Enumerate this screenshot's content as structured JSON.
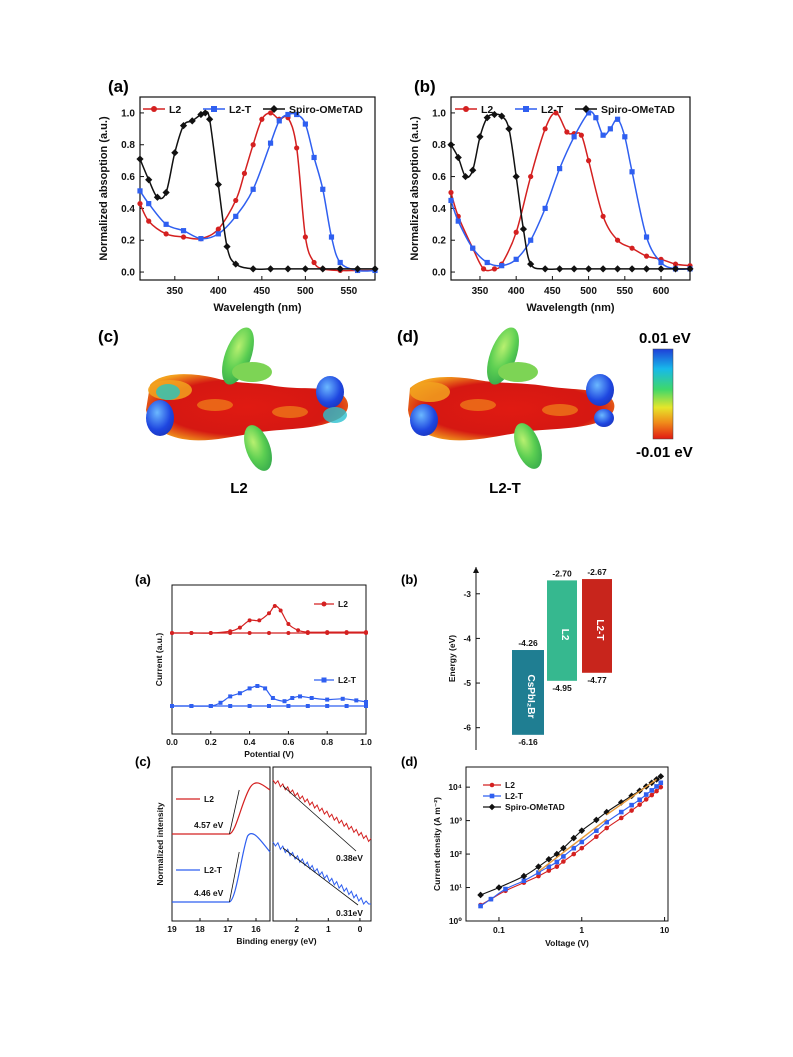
{
  "top_figure": {
    "panel_a_label": "(a)",
    "panel_b_label": "(b)",
    "panel_c_label": "(c)",
    "panel_d_label": "(d)",
    "molecule_left_label": "L2",
    "molecule_right_label": "L2-T",
    "esp_scale_max": "0.01 eV",
    "esp_scale_min": "-0.01 eV"
  },
  "bottom_figure": {
    "panel_a_label": "(a)",
    "panel_b_label": "(b)",
    "panel_c_label": "(c)",
    "panel_d_label": "(d)"
  },
  "colors": {
    "L2": "#d42020",
    "L2-T": "#2f5ff0",
    "Spiro-OMeTAD": "#111111",
    "CsPbI2Br": "#1f7e92",
    "L2_bar": "#36b88f",
    "L2T_bar": "#c8251c"
  },
  "chart_data": [
    {
      "id": "abs_a",
      "type": "line",
      "xlabel": "Wavelength (nm)",
      "ylabel": "Normalized absoption (a.u.)",
      "xlim": [
        310,
        580
      ],
      "ylim": [
        -0.05,
        1.1
      ],
      "xticks": [
        350,
        400,
        450,
        500,
        550
      ],
      "yticks": [
        0.0,
        0.2,
        0.4,
        0.6,
        0.8,
        1.0
      ],
      "ytick_labels": [
        "0.0",
        "0.2",
        "0.4",
        "0.6",
        "0.8",
        "1.0"
      ],
      "legend": [
        "L2",
        "L2-T",
        "Spiro-OMeTAD"
      ],
      "series": [
        {
          "name": "L2",
          "x": [
            310,
            320,
            340,
            360,
            380,
            400,
            420,
            430,
            440,
            450,
            460,
            470,
            480,
            490,
            500,
            510,
            520,
            540,
            560,
            580
          ],
          "y": [
            0.43,
            0.32,
            0.24,
            0.22,
            0.21,
            0.27,
            0.45,
            0.62,
            0.8,
            0.96,
            1.0,
            0.96,
            0.97,
            0.78,
            0.22,
            0.06,
            0.02,
            0.01,
            0.01,
            0.01
          ]
        },
        {
          "name": "L2-T",
          "x": [
            310,
            320,
            340,
            360,
            380,
            400,
            420,
            440,
            460,
            470,
            480,
            490,
            500,
            510,
            520,
            530,
            540,
            560,
            580
          ],
          "y": [
            0.51,
            0.43,
            0.3,
            0.26,
            0.21,
            0.24,
            0.35,
            0.52,
            0.81,
            0.95,
            0.99,
            0.99,
            0.93,
            0.72,
            0.52,
            0.22,
            0.06,
            0.01,
            0.01
          ]
        },
        {
          "name": "Spiro-OMeTAD",
          "x": [
            310,
            320,
            330,
            340,
            350,
            360,
            370,
            380,
            385,
            390,
            400,
            410,
            420,
            440,
            460,
            480,
            500,
            520,
            540,
            560,
            580
          ],
          "y": [
            0.71,
            0.58,
            0.47,
            0.5,
            0.75,
            0.92,
            0.95,
            0.99,
            1.0,
            0.96,
            0.55,
            0.16,
            0.05,
            0.02,
            0.02,
            0.02,
            0.02,
            0.02,
            0.02,
            0.02,
            0.02
          ]
        }
      ]
    },
    {
      "id": "abs_b",
      "type": "line",
      "xlabel": "Wavelength (nm)",
      "ylabel": "Normalized absoption (a.u.)",
      "xlim": [
        310,
        640
      ],
      "ylim": [
        -0.05,
        1.1
      ],
      "xticks": [
        350,
        400,
        450,
        500,
        550,
        600
      ],
      "yticks": [
        0.0,
        0.2,
        0.4,
        0.6,
        0.8,
        1.0
      ],
      "ytick_labels": [
        "0.0",
        "0.2",
        "0.4",
        "0.6",
        "0.8",
        "1.0"
      ],
      "legend": [
        "L2",
        "L2-T",
        "Spiro-OMeTAD"
      ],
      "series": [
        {
          "name": "L2",
          "x": [
            310,
            320,
            340,
            355,
            370,
            380,
            400,
            420,
            440,
            455,
            470,
            480,
            490,
            500,
            520,
            540,
            560,
            580,
            600,
            620,
            640
          ],
          "y": [
            0.5,
            0.35,
            0.15,
            0.02,
            0.02,
            0.05,
            0.25,
            0.6,
            0.9,
            1.0,
            0.88,
            0.87,
            0.86,
            0.7,
            0.35,
            0.2,
            0.15,
            0.1,
            0.08,
            0.05,
            0.04
          ]
        },
        {
          "name": "L2-T",
          "x": [
            310,
            320,
            340,
            360,
            380,
            400,
            420,
            440,
            460,
            480,
            500,
            510,
            520,
            530,
            540,
            550,
            560,
            580,
            600,
            620,
            640
          ],
          "y": [
            0.45,
            0.32,
            0.15,
            0.06,
            0.04,
            0.08,
            0.2,
            0.4,
            0.65,
            0.85,
            1.0,
            0.97,
            0.86,
            0.9,
            0.96,
            0.85,
            0.63,
            0.22,
            0.06,
            0.02,
            0.02
          ]
        },
        {
          "name": "Spiro-OMeTAD",
          "x": [
            310,
            320,
            330,
            340,
            350,
            360,
            370,
            380,
            390,
            400,
            410,
            420,
            440,
            460,
            480,
            500,
            520,
            540,
            560,
            580,
            600,
            620,
            640
          ],
          "y": [
            0.8,
            0.72,
            0.6,
            0.64,
            0.85,
            0.97,
            0.99,
            0.98,
            0.9,
            0.6,
            0.27,
            0.05,
            0.02,
            0.02,
            0.02,
            0.02,
            0.02,
            0.02,
            0.02,
            0.02,
            0.02,
            0.02,
            0.02
          ]
        }
      ]
    },
    {
      "id": "cv",
      "type": "line",
      "xlabel": "Potential (V)",
      "ylabel": "Current (a.u.)",
      "xlim": [
        0.0,
        1.0
      ],
      "xticks": [
        0.0,
        0.2,
        0.4,
        0.6,
        0.8,
        1.0
      ],
      "xtick_labels": [
        "0.0",
        "0.2",
        "0.4",
        "0.6",
        "0.8",
        "1.0"
      ],
      "legend": [
        "L2",
        "L2-T"
      ],
      "series": [
        {
          "name": "L2",
          "x": [
            0.0,
            0.1,
            0.2,
            0.3,
            0.35,
            0.4,
            0.45,
            0.5,
            0.53,
            0.56,
            0.6,
            0.65,
            0.7,
            0.8,
            0.9,
            1.0
          ],
          "y": [
            0,
            0,
            0,
            0.02,
            0.06,
            0.14,
            0.14,
            0.22,
            0.3,
            0.25,
            0.1,
            0.03,
            0.01,
            0.01,
            0.01,
            0.01
          ]
        },
        {
          "name": "L2-T",
          "x": [
            0.0,
            0.1,
            0.2,
            0.25,
            0.3,
            0.35,
            0.4,
            0.44,
            0.48,
            0.52,
            0.58,
            0.62,
            0.66,
            0.72,
            0.8,
            0.88,
            0.95,
            1.0
          ],
          "y": [
            0,
            0,
            0,
            0.04,
            0.12,
            0.16,
            0.22,
            0.25,
            0.22,
            0.1,
            0.06,
            0.1,
            0.12,
            0.1,
            0.08,
            0.09,
            0.07,
            0.05
          ]
        }
      ]
    },
    {
      "id": "energy",
      "type": "bar",
      "ylabel": "Energy (eV)",
      "ylim": [
        -6.5,
        -2.4
      ],
      "yticks": [
        -3,
        -4,
        -5,
        -6
      ],
      "ytick_labels": [
        "-3",
        "-4",
        "-5",
        "-6"
      ],
      "categories": [
        "CsPbI₂Br",
        "L2",
        "L2-T"
      ],
      "top_values": [
        -4.26,
        -2.7,
        -2.67
      ],
      "bottom_values": [
        -6.16,
        -4.95,
        -4.77
      ],
      "top_labels": [
        "-4.26",
        "-2.70",
        "-2.67"
      ],
      "bottom_labels": [
        "-6.16",
        "-4.95",
        "-4.77"
      ]
    },
    {
      "id": "ups",
      "type": "line",
      "xlabel": "Binding energy (eV)",
      "ylabel": "Normalized intensity",
      "xticks_left": [
        19,
        18,
        17,
        16
      ],
      "xticks_right": [
        2,
        1,
        0
      ],
      "series_labels": [
        "L2",
        "L2-T"
      ],
      "cutoff_labels": [
        "4.57 eV",
        "4.46 eV"
      ],
      "onset_labels": [
        "0.38eV",
        "0.31eV"
      ]
    },
    {
      "id": "sclc",
      "type": "scatter",
      "xlabel": "Voltage (V)",
      "ylabel": "Current density (A m⁻²)",
      "xscale": "log",
      "yscale": "log",
      "xlim": [
        0.04,
        11
      ],
      "ylim": [
        1,
        40000
      ],
      "xticks": [
        0.1,
        1,
        10
      ],
      "xtick_labels": [
        "0.1",
        "1",
        "10"
      ],
      "yticks": [
        1,
        10,
        100,
        1000,
        10000
      ],
      "ytick_labels": [
        "10⁰",
        "10¹",
        "10²",
        "10³",
        "10⁴"
      ],
      "legend": [
        "L2",
        "L2-T",
        "Spiro-OMeTAD"
      ],
      "series": [
        {
          "name": "L2",
          "x": [
            0.06,
            0.08,
            0.12,
            0.2,
            0.3,
            0.4,
            0.5,
            0.6,
            0.8,
            1,
            1.5,
            2,
            3,
            4,
            5,
            6,
            7,
            8,
            9
          ],
          "y": [
            3,
            4.5,
            8,
            14,
            22,
            32,
            42,
            60,
            100,
            150,
            330,
            600,
            1200,
            2000,
            3000,
            4300,
            5800,
            7600,
            10000
          ]
        },
        {
          "name": "L2-T",
          "x": [
            0.06,
            0.08,
            0.12,
            0.2,
            0.3,
            0.4,
            0.5,
            0.6,
            0.8,
            1,
            1.5,
            2,
            3,
            4,
            5,
            6,
            7,
            8,
            9
          ],
          "y": [
            2.8,
            4.5,
            9,
            16,
            28,
            42,
            58,
            85,
            150,
            230,
            500,
            900,
            1800,
            2900,
            4200,
            6000,
            8000,
            10500,
            13500
          ]
        },
        {
          "name": "Spiro-OMeTAD",
          "x": [
            0.06,
            0.1,
            0.2,
            0.3,
            0.4,
            0.5,
            0.6,
            0.8,
            1,
            1.5,
            2,
            3,
            4,
            5,
            6,
            7,
            8,
            9
          ],
          "y": [
            6,
            10,
            22,
            42,
            70,
            100,
            150,
            300,
            500,
            1050,
            1800,
            3500,
            5500,
            7800,
            10500,
            13500,
            17000,
            21000
          ]
        }
      ]
    }
  ]
}
